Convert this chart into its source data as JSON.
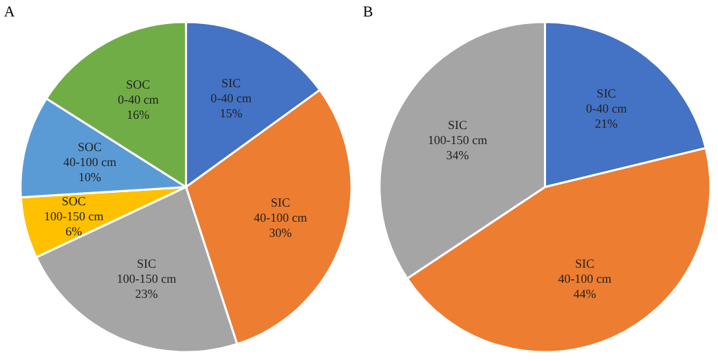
{
  "chart_data": [
    {
      "type": "pie",
      "title": "A",
      "categories": [
        "SIC\n0-40 cm",
        "SIC\n40-100 cm",
        "SIC\n100-150 cm",
        "SOC\n100-150 cm",
        "SOC\n40-100 cm",
        "SOC\n0-40 cm"
      ],
      "values": [
        15,
        30,
        23,
        6,
        10,
        16
      ],
      "colors": [
        "#4472c4",
        "#ed7d31",
        "#a5a5a5",
        "#ffc000",
        "#5b9bd5",
        "#70ad47"
      ],
      "value_labels": [
        "15%",
        "30%",
        "23%",
        "6%",
        "10%",
        "16%"
      ],
      "legend": false
    },
    {
      "type": "pie",
      "title": "B",
      "categories": [
        "SIC\n0-40 cm",
        "SIC\n40-100 cm",
        "SIC\n100-150 cm"
      ],
      "values": [
        21,
        44,
        34
      ],
      "colors": [
        "#4472c4",
        "#ed7d31",
        "#a5a5a5"
      ],
      "value_labels": [
        "21%",
        "44%",
        "34%"
      ],
      "legend": false
    }
  ]
}
